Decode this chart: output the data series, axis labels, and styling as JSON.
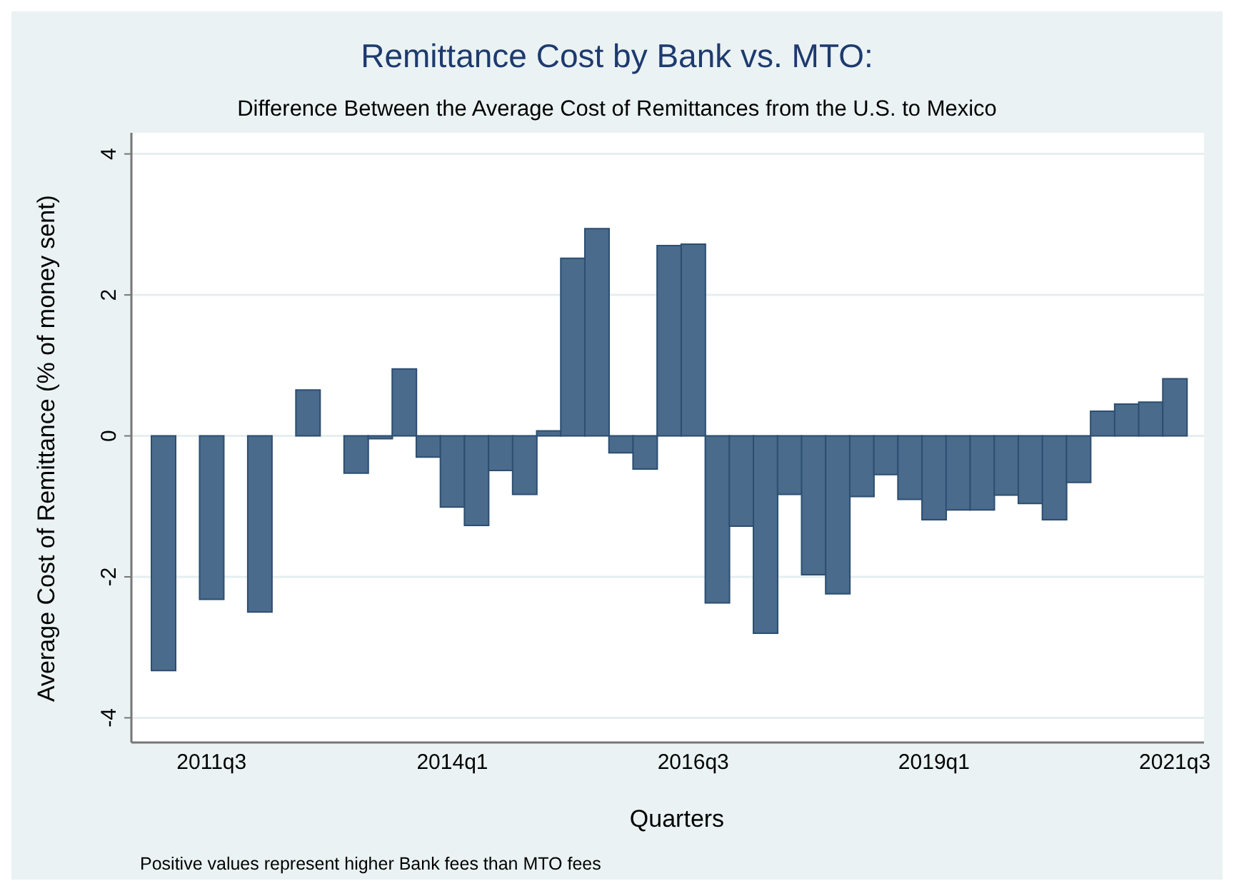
{
  "chart_data": {
    "type": "bar",
    "title": "Remittance Cost by Bank vs. MTO:",
    "subtitle": "Difference Between the Average Cost of Remittances from the U.S. to Mexico",
    "xlabel": "Quarters",
    "ylabel": "Average Cost of Remittance (% of money sent)",
    "annotations": [
      "Positive values represent higher Bank fees than MTO fees"
    ],
    "categories": [
      null,
      null,
      "2011q3",
      null,
      null,
      null,
      null,
      null,
      null,
      null,
      null,
      null,
      "2014q1",
      null,
      null,
      null,
      null,
      null,
      null,
      null,
      null,
      null,
      "2016q3",
      null,
      null,
      null,
      null,
      null,
      null,
      null,
      null,
      null,
      "2019q1",
      null,
      null,
      null,
      null,
      null,
      null,
      null,
      null,
      null,
      "2021q3"
    ],
    "values": [
      -3.33,
      null,
      -2.32,
      null,
      -2.5,
      null,
      0.65,
      null,
      -0.53,
      -0.04,
      0.95,
      -0.3,
      -1.01,
      -1.27,
      -0.49,
      -0.83,
      0.07,
      2.52,
      2.94,
      -0.24,
      -0.47,
      2.7,
      2.72,
      -2.37,
      -1.28,
      -2.8,
      -0.83,
      -1.97,
      -2.24,
      -0.86,
      -0.55,
      -0.9,
      -1.19,
      -1.05,
      -1.05,
      -0.84,
      -0.96,
      -1.19,
      -0.66,
      0.35,
      0.45,
      0.48,
      0.81
    ],
    "color": "#4a6b8b",
    "ylim": [
      -4.35,
      4.3
    ],
    "yticks": [
      -4,
      -2,
      0,
      2,
      4
    ],
    "grid": "y",
    "legend": false
  }
}
